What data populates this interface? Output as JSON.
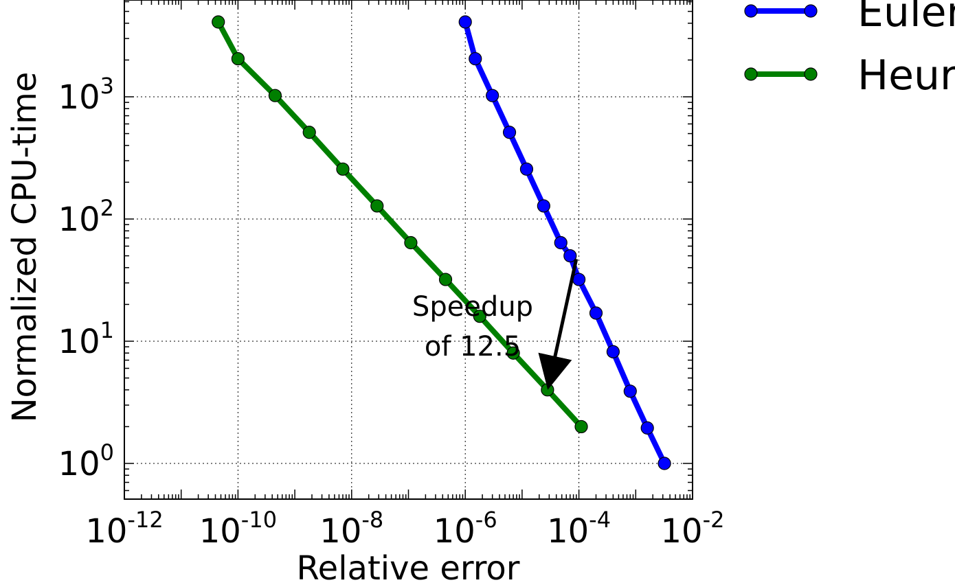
{
  "chart_data": {
    "type": "line",
    "title": "",
    "xlabel": "Relative error",
    "ylabel": "Normalized CPU-time",
    "x_scale": "log",
    "y_scale": "log",
    "xlim": [
      1e-12,
      0.01
    ],
    "ylim": [
      0.5,
      7000
    ],
    "grid": true,
    "legend_position": "outside right",
    "x_ticks": [
      {
        "base": "10",
        "exp": "-12",
        "value": 1e-12
      },
      {
        "base": "10",
        "exp": "-10",
        "value": 1e-10
      },
      {
        "base": "10",
        "exp": "-8",
        "value": 1e-08
      },
      {
        "base": "10",
        "exp": "-6",
        "value": 1e-06
      },
      {
        "base": "10",
        "exp": "-4",
        "value": 0.0001
      },
      {
        "base": "10",
        "exp": "-2",
        "value": 0.01
      }
    ],
    "y_ticks": [
      {
        "base": "10",
        "exp": "0",
        "value": 1
      },
      {
        "base": "10",
        "exp": "1",
        "value": 10
      },
      {
        "base": "10",
        "exp": "2",
        "value": 100
      },
      {
        "base": "10",
        "exp": "3",
        "value": 1000
      }
    ],
    "series": [
      {
        "name": "Euler",
        "legend_visible_text": "Euler",
        "color": "#0000ff",
        "x": [
          1e-06,
          1.5e-06,
          3e-06,
          6e-06,
          1.2e-05,
          2.4e-05,
          4.8e-05,
          7e-05,
          0.0001,
          0.0002,
          0.0004,
          0.0008,
          0.0016,
          0.0032
        ],
        "y": [
          4096,
          2048,
          1024,
          512,
          256,
          128,
          64,
          50,
          32,
          17,
          8.2,
          3.9,
          1.95,
          1.0
        ]
      },
      {
        "name": "Heun",
        "legend_visible_text": "Heur",
        "color": "#007f00",
        "x": [
          4.5e-11,
          1e-10,
          4.5e-10,
          1.8e-09,
          7e-09,
          2.8e-08,
          1.1e-07,
          4.5e-07,
          1.8e-06,
          7e-06,
          2.8e-05,
          0.00011
        ],
        "y": [
          4096,
          2048,
          1024,
          512,
          256,
          128,
          64,
          32,
          16,
          8,
          4,
          2
        ]
      }
    ],
    "annotation": {
      "lines": [
        "Speedup",
        "of 12.5"
      ],
      "arrow_from": {
        "x": 9e-05,
        "y": 47
      },
      "arrow_to": {
        "x": 3e-05,
        "y": 4.2
      }
    }
  }
}
